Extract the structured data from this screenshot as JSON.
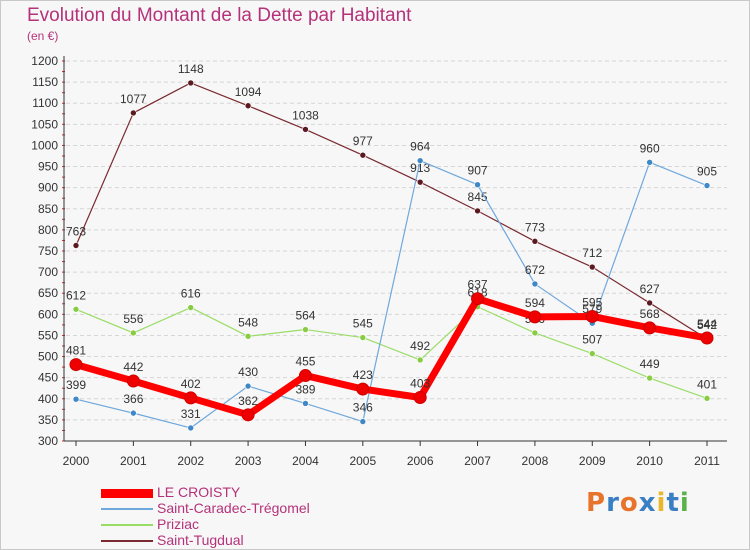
{
  "title": "Evolution du Montant de la Dette par Habitant",
  "unit": "(en €)",
  "logo": {
    "text": "Proxiti",
    "colors": [
      "#e8742c",
      "#3a7fc4",
      "#e8742c",
      "#3a7fc4",
      "#e8b72c",
      "#3a7fc4",
      "#5ab34a"
    ]
  },
  "colors": {
    "title": "#b5327a",
    "axis": "#333333",
    "grid": "#d6d6d6",
    "tick_minor": "#cc3333"
  },
  "chart_data": {
    "type": "line",
    "title": "Evolution du Montant de la Dette par Habitant",
    "ylabel": "(en €)",
    "xlabel": "",
    "x": [
      "2000",
      "2001",
      "2002",
      "2003",
      "2004",
      "2005",
      "2006",
      "2007",
      "2008",
      "2009",
      "2010",
      "2011"
    ],
    "ylim": [
      300,
      1200
    ],
    "yticks": [
      300,
      350,
      400,
      450,
      500,
      550,
      600,
      650,
      700,
      750,
      800,
      850,
      900,
      950,
      1000,
      1050,
      1100,
      1150,
      1200
    ],
    "grid": "horizontal",
    "legend": "bottom-left",
    "series": [
      {
        "name": "Saint-Tugdual",
        "color": "#7a2a30",
        "marker": "#5a1a20",
        "width": 1.2,
        "values": [
          763,
          1077,
          1148,
          1094,
          1038,
          977,
          913,
          845,
          773,
          712,
          627,
          542
        ]
      },
      {
        "name": "Priziac",
        "color": "#99dd66",
        "marker": "#88cc44",
        "width": 1.2,
        "values": [
          612,
          556,
          616,
          548,
          564,
          545,
          492,
          618,
          556,
          507,
          449,
          401
        ]
      },
      {
        "name": "Saint-Caradec-Trégomel",
        "color": "#6fa8dc",
        "marker": "#3f88c5",
        "width": 1.2,
        "values": [
          399,
          366,
          331,
          430,
          389,
          346,
          964,
          907,
          672,
          579,
          960,
          905
        ]
      },
      {
        "name": "LE CROISTY",
        "color": "#ff0000",
        "marker": "#ee0000",
        "width": 7,
        "values": [
          481,
          442,
          402,
          362,
          455,
          423,
          403,
          637,
          594,
          595,
          568,
          544
        ]
      }
    ]
  }
}
